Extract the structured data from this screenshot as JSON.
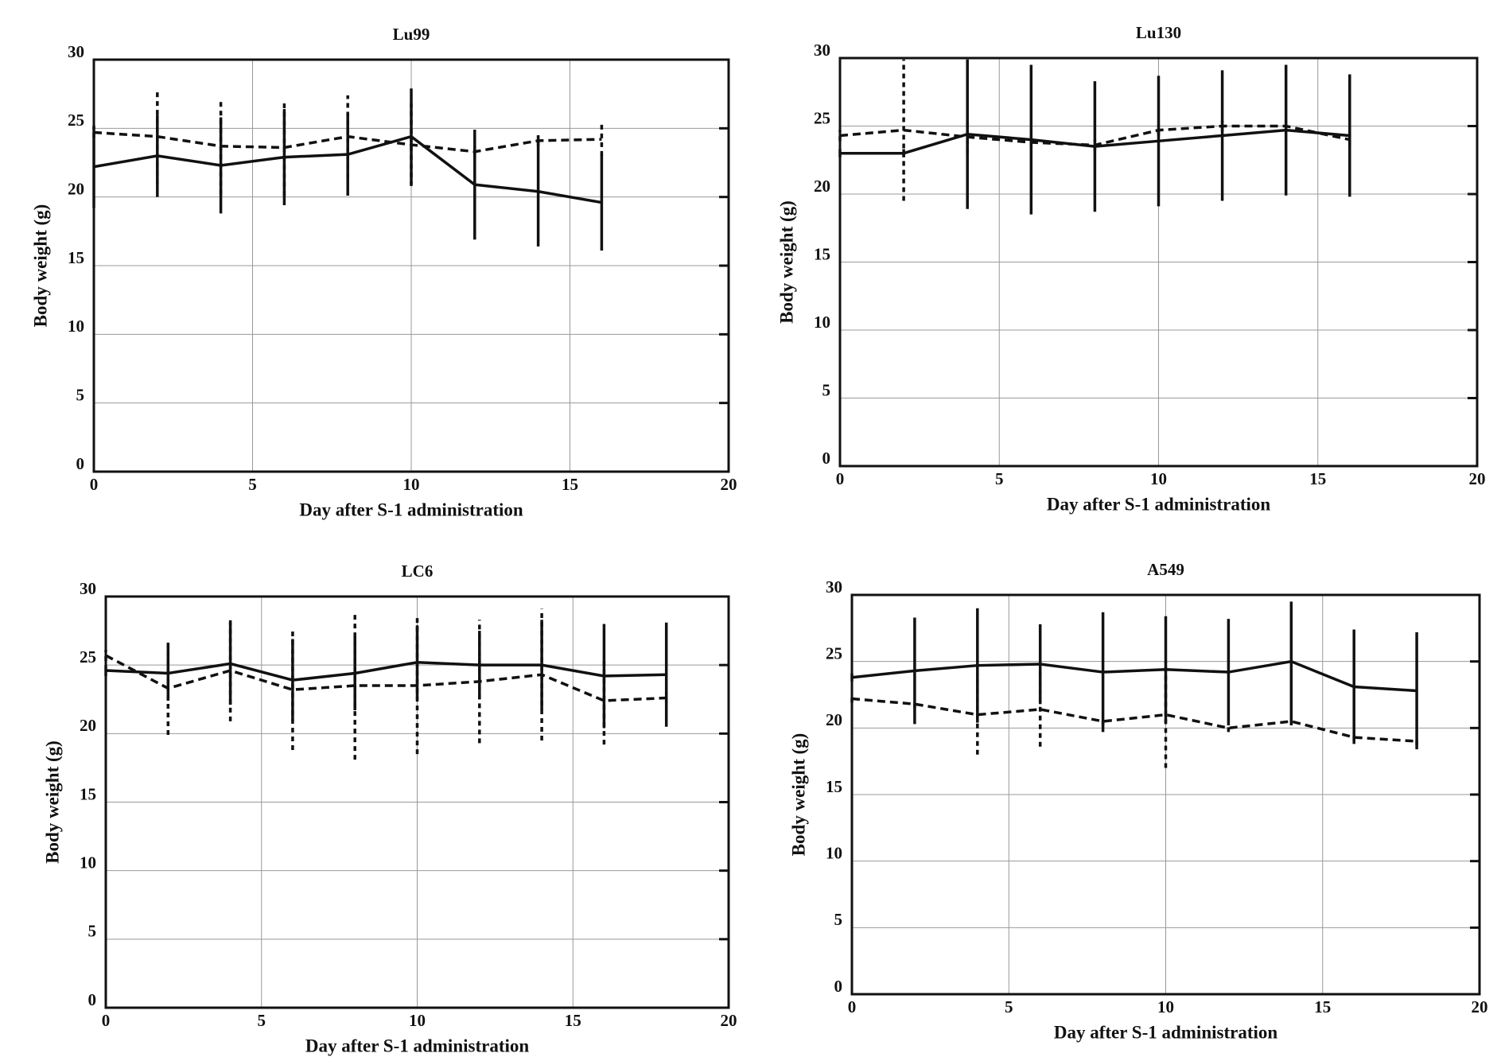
{
  "chart_data": [
    {
      "type": "line",
      "title": "Lu99",
      "xlabel": "Day after S-1 administration",
      "ylabel": "Body weight (g)",
      "x": [
        0,
        2,
        4,
        6,
        8,
        10,
        12,
        14,
        16
      ],
      "series": [
        {
          "color": "#111111",
          "dash": false,
          "values": [
            22.2,
            23.0,
            22.3,
            22.9,
            23.1,
            24.4,
            20.9,
            20.4,
            19.6
          ],
          "errors": [
            3.0,
            3.0,
            3.5,
            3.5,
            3.0,
            3.5,
            4.0,
            4.0,
            3.5
          ]
        },
        {
          "color": "#111111",
          "dash": true,
          "values": [
            24.7,
            24.4,
            23.7,
            23.6,
            24.4,
            23.8,
            23.3,
            24.1,
            24.2
          ],
          "errors": [
            0.4,
            3.5,
            3.5,
            3.5,
            3.0,
            3.0,
            0.4,
            0.4,
            1.2
          ]
        }
      ],
      "xlim": [
        0,
        20
      ],
      "xticks": [
        0,
        5,
        10,
        15,
        20
      ],
      "ylim": [
        0,
        30
      ],
      "yticks": [
        0,
        5,
        10,
        15,
        20,
        25,
        30
      ],
      "grid": true
    },
    {
      "type": "line",
      "title": "Lu130",
      "xlabel": "Day after S-1 administration",
      "ylabel": "Body weight (g)",
      "x": [
        0,
        2,
        4,
        6,
        8,
        10,
        12,
        14,
        16
      ],
      "series": [
        {
          "color": "#111111",
          "dash": false,
          "values": [
            23.0,
            23.0,
            24.4,
            24.0,
            23.5,
            23.9,
            24.3,
            24.7,
            24.3
          ],
          "errors": [
            0.3,
            0.3,
            5.5,
            5.5,
            4.8,
            4.8,
            4.8,
            4.8,
            4.5
          ]
        },
        {
          "color": "#111111",
          "dash": true,
          "values": [
            24.3,
            24.7,
            24.2,
            23.8,
            23.6,
            24.7,
            25.0,
            25.0,
            24.0
          ],
          "errors": [
            0.4,
            5.2,
            1.2,
            0.4,
            0.4,
            0.4,
            0.4,
            0.4,
            0.4
          ]
        }
      ],
      "xlim": [
        0,
        20
      ],
      "xticks": [
        0,
        5,
        10,
        15,
        20
      ],
      "ylim": [
        0,
        30
      ],
      "yticks": [
        0,
        5,
        10,
        15,
        20,
        25,
        30
      ],
      "grid": true
    },
    {
      "type": "line",
      "title": "LC6",
      "xlabel": "Day after S-1 administration",
      "ylabel": "Body weight (g)",
      "x": [
        0,
        2,
        4,
        6,
        8,
        10,
        12,
        14,
        16,
        18
      ],
      "series": [
        {
          "color": "#111111",
          "dash": false,
          "values": [
            24.6,
            24.4,
            25.1,
            23.9,
            24.4,
            25.2,
            25.0,
            25.0,
            24.2,
            24.3
          ],
          "errors": [
            0.4,
            2.0,
            3.0,
            3.0,
            2.7,
            2.7,
            2.5,
            3.3,
            3.8,
            3.8
          ]
        },
        {
          "color": "#111111",
          "dash": true,
          "values": [
            25.7,
            23.3,
            24.6,
            23.2,
            23.5,
            23.5,
            23.8,
            24.3,
            22.4,
            22.6
          ],
          "errors": [
            0.4,
            3.4,
            3.7,
            4.4,
            5.4,
            5.0,
            4.5,
            4.8,
            3.2,
            0.4
          ]
        }
      ],
      "xlim": [
        0,
        20
      ],
      "xticks": [
        0,
        5,
        10,
        15,
        20
      ],
      "ylim": [
        0,
        30
      ],
      "yticks": [
        0,
        5,
        10,
        15,
        20,
        25,
        30
      ],
      "grid": true
    },
    {
      "type": "line",
      "title": "A549",
      "xlabel": "Day after S-1 administration",
      "ylabel": "Body weight (g)",
      "x": [
        0,
        2,
        4,
        6,
        8,
        10,
        12,
        14,
        16,
        18
      ],
      "series": [
        {
          "color": "#111111",
          "dash": false,
          "values": [
            23.8,
            24.3,
            24.7,
            24.8,
            24.2,
            24.4,
            24.2,
            25.0,
            23.1,
            22.8
          ],
          "errors": [
            0.3,
            4.0,
            4.3,
            3.0,
            4.5,
            4.0,
            4.0,
            4.5,
            4.3,
            4.4
          ]
        },
        {
          "color": "#111111",
          "dash": true,
          "values": [
            22.2,
            21.8,
            21.0,
            21.4,
            20.5,
            21.0,
            20.0,
            20.5,
            19.3,
            19.0
          ],
          "errors": [
            0.3,
            0.3,
            3.0,
            2.8,
            0.3,
            4.0,
            0.3,
            0.3,
            0.3,
            0.3
          ]
        }
      ],
      "xlim": [
        0,
        20
      ],
      "xticks": [
        0,
        5,
        10,
        15,
        20
      ],
      "ylim": [
        0,
        30
      ],
      "yticks": [
        0,
        5,
        10,
        15,
        20,
        25,
        30
      ],
      "grid": true
    }
  ]
}
